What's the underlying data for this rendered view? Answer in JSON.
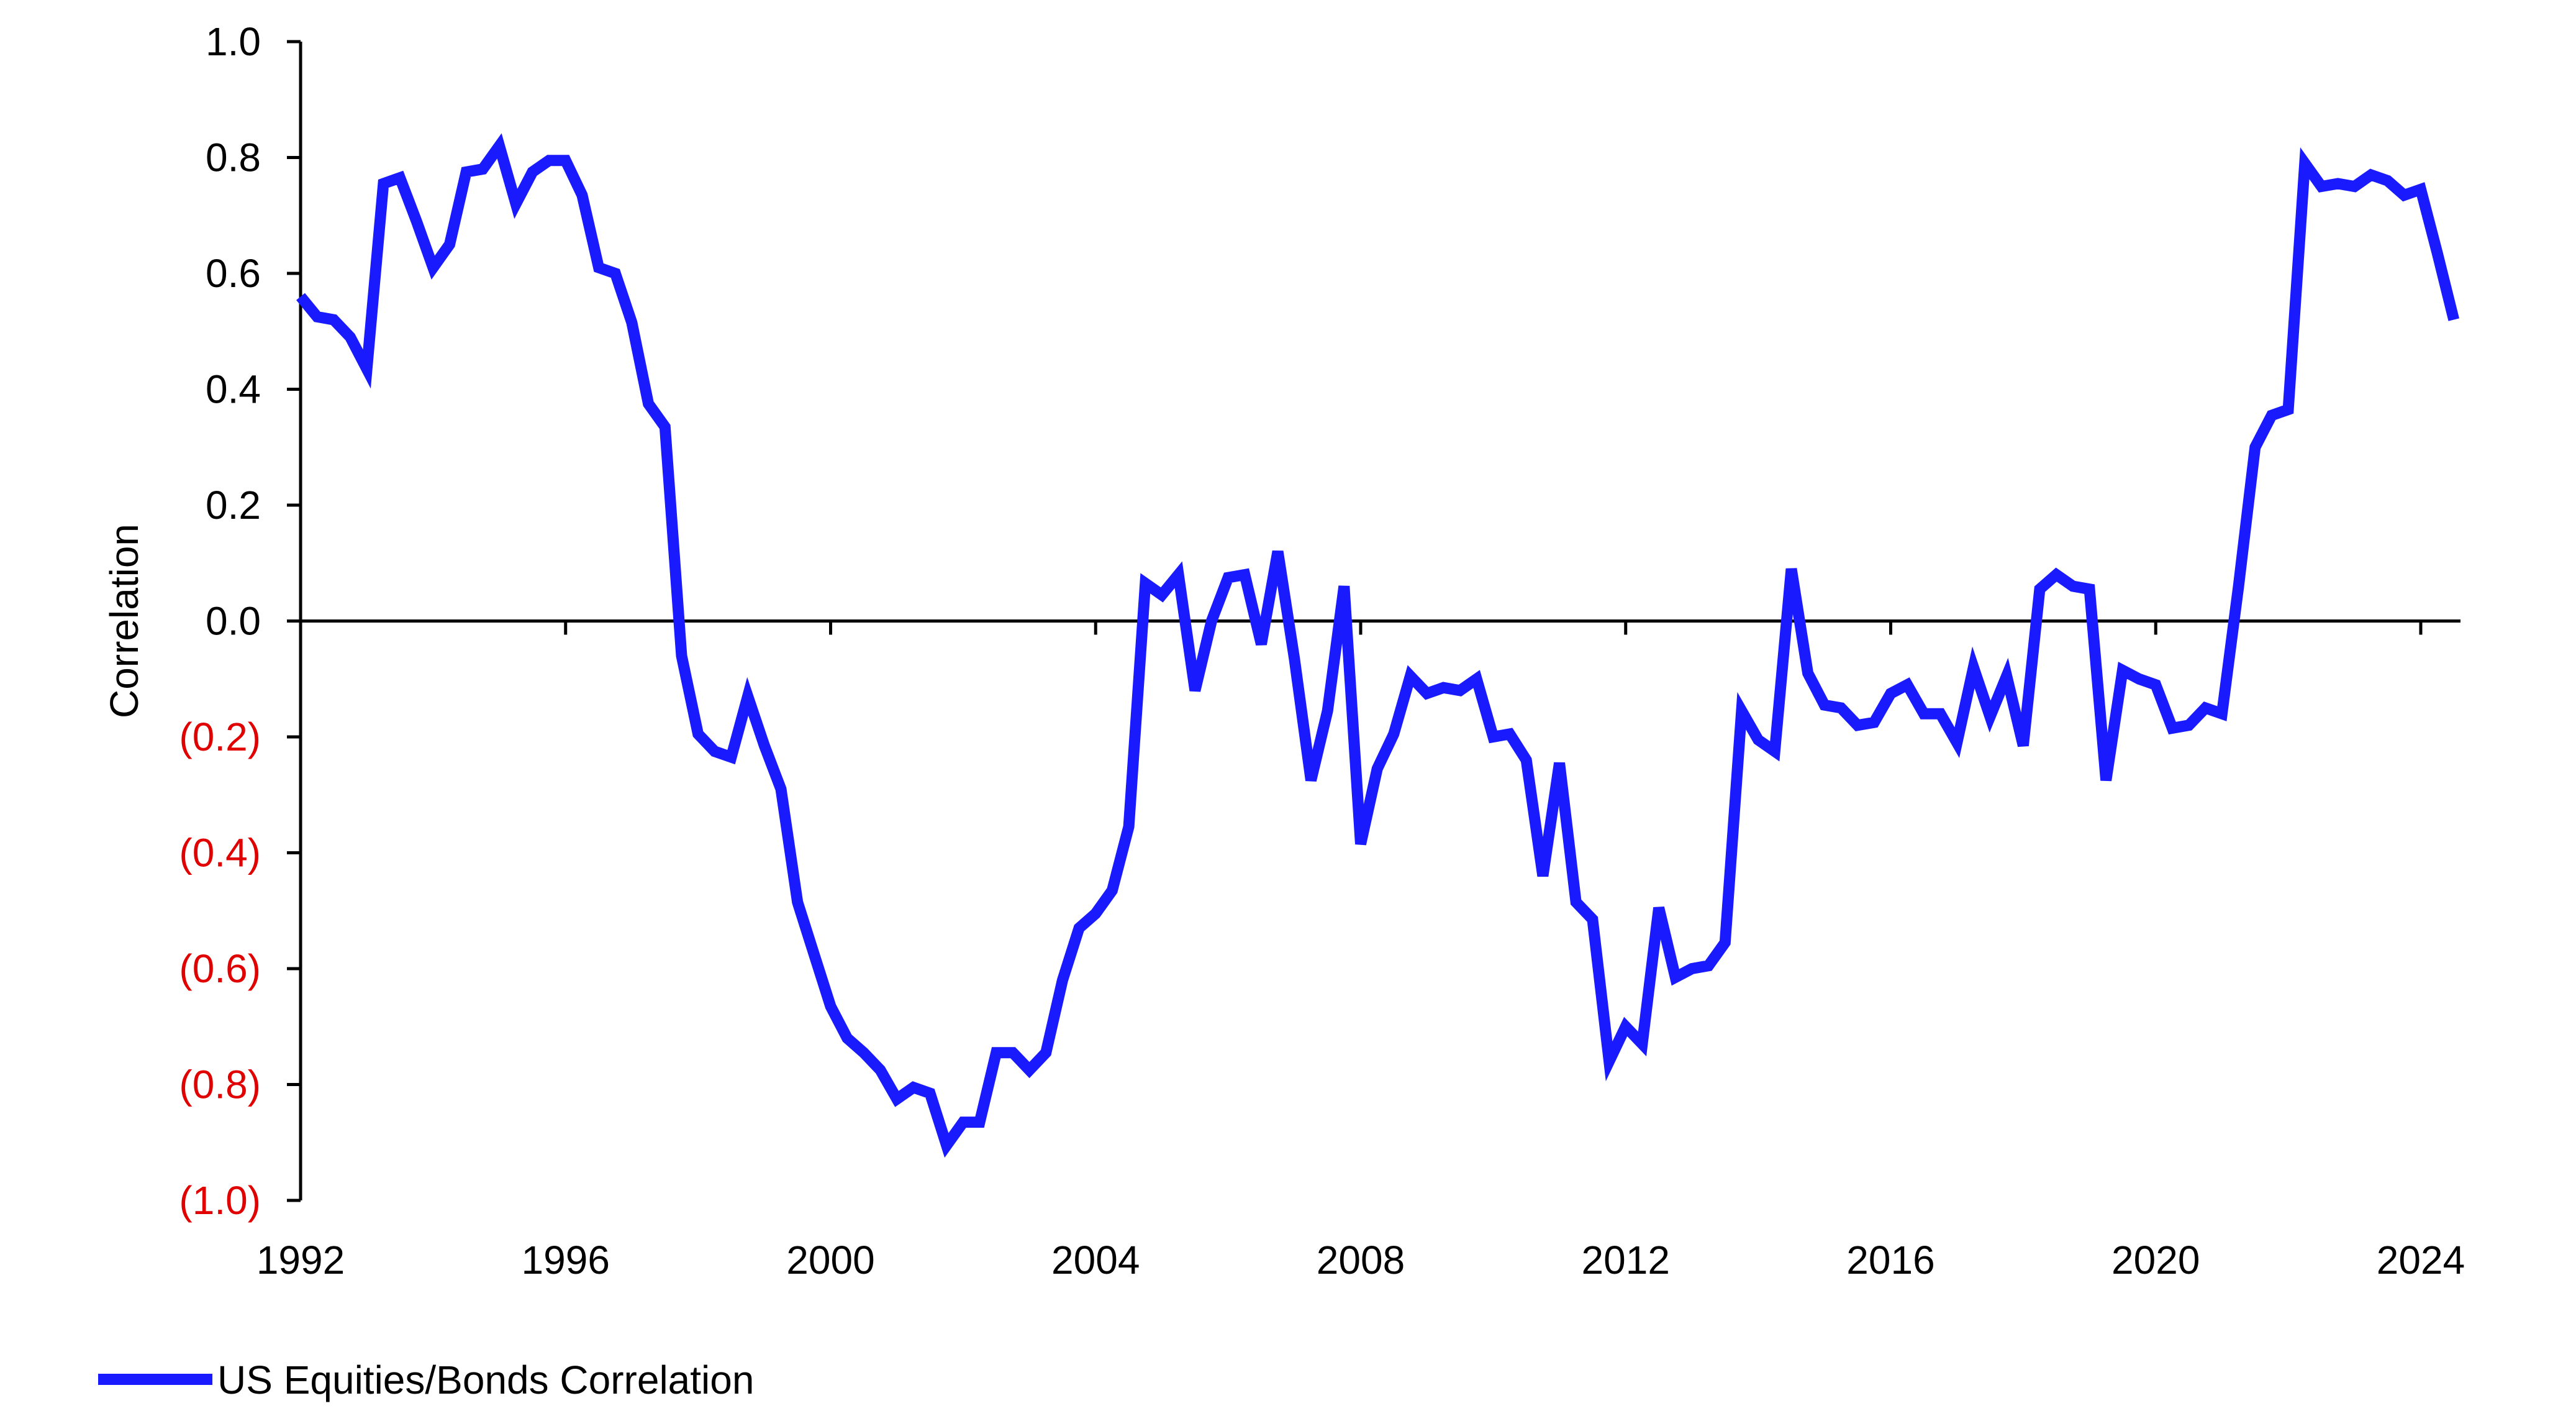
{
  "chart_data": {
    "type": "line",
    "title": "",
    "xlabel": "",
    "ylabel": "Correlation",
    "xlim": [
      1992,
      2024.6
    ],
    "ylim": [
      -1.0,
      1.0
    ],
    "x_ticks": [
      1992,
      1996,
      2000,
      2004,
      2008,
      2012,
      2016,
      2020,
      2024
    ],
    "y_ticks": [
      1.0,
      0.8,
      0.6,
      0.4,
      0.2,
      0.0,
      -0.2,
      -0.4,
      -0.6,
      -0.8,
      -1.0
    ],
    "y_tick_labels": [
      "1.0",
      "0.8",
      "0.6",
      "0.4",
      "0.2",
      "0.0",
      "(0.2)",
      "(0.4)",
      "(0.6)",
      "(0.8)",
      "(1.0)"
    ],
    "negative_label_color": "#e00000",
    "grid": false,
    "legend_position": "bottom-left",
    "series": [
      {
        "name": "US Equities/Bonds Correlation",
        "color": "#1a1aff",
        "x": [
          1992.0,
          1992.25,
          1992.5,
          1992.75,
          1993.0,
          1993.25,
          1993.5,
          1993.75,
          1994.0,
          1994.25,
          1994.5,
          1994.75,
          1995.0,
          1995.25,
          1995.5,
          1995.75,
          1996.0,
          1996.25,
          1996.5,
          1996.75,
          1997.0,
          1997.25,
          1997.5,
          1997.75,
          1998.0,
          1998.25,
          1998.5,
          1998.75,
          1999.0,
          1999.25,
          1999.5,
          1999.75,
          2000.0,
          2000.25,
          2000.5,
          2000.75,
          2001.0,
          2001.25,
          2001.5,
          2001.75,
          2002.0,
          2002.25,
          2002.5,
          2002.75,
          2003.0,
          2003.25,
          2003.5,
          2003.75,
          2004.0,
          2004.25,
          2004.5,
          2004.75,
          2005.0,
          2005.25,
          2005.5,
          2005.75,
          2006.0,
          2006.25,
          2006.5,
          2006.75,
          2007.0,
          2007.25,
          2007.5,
          2007.75,
          2008.0,
          2008.25,
          2008.5,
          2008.75,
          2009.0,
          2009.25,
          2009.5,
          2009.75,
          2010.0,
          2010.25,
          2010.5,
          2010.75,
          2011.0,
          2011.25,
          2011.5,
          2011.75,
          2012.0,
          2012.25,
          2012.5,
          2012.75,
          2013.0,
          2013.25,
          2013.5,
          2013.75,
          2014.0,
          2014.25,
          2014.5,
          2014.75,
          2015.0,
          2015.25,
          2015.5,
          2015.75,
          2016.0,
          2016.25,
          2016.5,
          2016.75,
          2017.0,
          2017.25,
          2017.5,
          2017.75,
          2018.0,
          2018.25,
          2018.5,
          2018.75,
          2019.0,
          2019.25,
          2019.5,
          2019.75,
          2020.0,
          2020.25,
          2020.5,
          2020.75,
          2021.0,
          2021.25,
          2021.5,
          2021.75,
          2022.0,
          2022.25,
          2022.5,
          2022.75,
          2023.0,
          2023.25,
          2023.5,
          2023.75,
          2024.0,
          2024.25,
          2024.5
        ],
        "values": [
          0.56,
          0.525,
          0.52,
          0.49,
          0.435,
          0.755,
          0.765,
          0.69,
          0.61,
          0.65,
          0.775,
          0.78,
          0.82,
          0.72,
          0.775,
          0.795,
          0.795,
          0.735,
          0.61,
          0.6,
          0.515,
          0.375,
          0.335,
          -0.06,
          -0.195,
          -0.225,
          -0.235,
          -0.13,
          -0.215,
          -0.29,
          -0.485,
          -0.575,
          -0.665,
          -0.72,
          -0.745,
          -0.775,
          -0.825,
          -0.805,
          -0.815,
          -0.905,
          -0.865,
          -0.865,
          -0.745,
          -0.745,
          -0.775,
          -0.745,
          -0.62,
          -0.53,
          -0.505,
          -0.465,
          -0.355,
          0.065,
          0.045,
          0.08,
          -0.12,
          0.0,
          0.075,
          0.08,
          -0.04,
          0.12,
          -0.065,
          -0.275,
          -0.155,
          0.06,
          -0.385,
          -0.255,
          -0.195,
          -0.095,
          -0.125,
          -0.115,
          -0.12,
          -0.1,
          -0.2,
          -0.195,
          -0.24,
          -0.44,
          -0.245,
          -0.485,
          -0.515,
          -0.76,
          -0.7,
          -0.73,
          -0.495,
          -0.615,
          -0.6,
          -0.595,
          -0.555,
          -0.155,
          -0.205,
          -0.225,
          0.09,
          -0.09,
          -0.145,
          -0.15,
          -0.18,
          -0.175,
          -0.125,
          -0.11,
          -0.16,
          -0.16,
          -0.21,
          -0.08,
          -0.165,
          -0.095,
          -0.215,
          0.055,
          0.08,
          0.06,
          0.055,
          -0.275,
          -0.085,
          -0.1,
          -0.11,
          -0.185,
          -0.18,
          -0.15,
          -0.16,
          0.06,
          0.3,
          0.355,
          0.365,
          0.79,
          0.75,
          0.755,
          0.75,
          0.77,
          0.76,
          0.735,
          0.745,
          0.635,
          0.52
        ]
      }
    ]
  }
}
